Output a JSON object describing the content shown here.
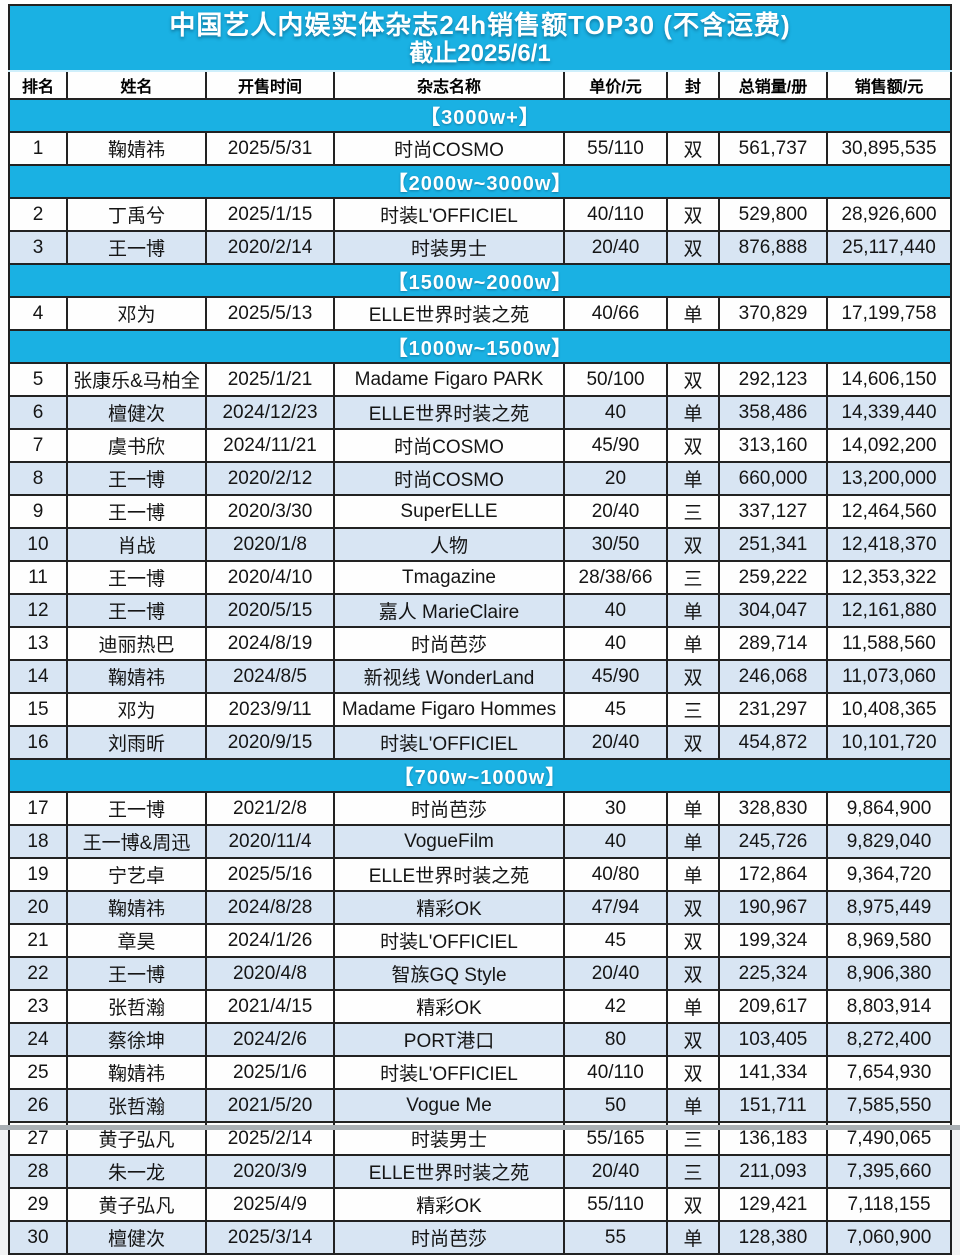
{
  "title": "中国艺人内娱实体杂志24h销售额TOP30 (不含运费)",
  "subtitle": "截止2025/6/1",
  "columns": [
    "排名",
    "姓名",
    "开售时间",
    "杂志名称",
    "单价/元",
    "封",
    "总销量/册",
    "销售额/元"
  ],
  "colors": {
    "accent": "#1ab1e3",
    "alt_row": "#d8e5f3",
    "border": "#222222"
  },
  "sections": [
    {
      "label": "【3000w+】",
      "rows": [
        {
          "rank": "1",
          "name": "鞠婧祎",
          "date": "2025/5/31",
          "magazine": "时尚COSMO",
          "price": "55/110",
          "cover": "双",
          "copies": "561,737",
          "revenue": "30,895,535"
        }
      ]
    },
    {
      "label": "【2000w~3000w】",
      "rows": [
        {
          "rank": "2",
          "name": "丁禹兮",
          "date": "2025/1/15",
          "magazine": "时装L'OFFICIEL",
          "price": "40/110",
          "cover": "双",
          "copies": "529,800",
          "revenue": "28,926,600"
        },
        {
          "rank": "3",
          "name": "王一博",
          "date": "2020/2/14",
          "magazine": "时装男士",
          "price": "20/40",
          "cover": "双",
          "copies": "876,888",
          "revenue": "25,117,440"
        }
      ]
    },
    {
      "label": "【1500w~2000w】",
      "rows": [
        {
          "rank": "4",
          "name": "邓为",
          "date": "2025/5/13",
          "magazine": "ELLE世界时装之苑",
          "price": "40/66",
          "cover": "单",
          "copies": "370,829",
          "revenue": "17,199,758"
        }
      ]
    },
    {
      "label": "【1000w~1500w】",
      "rows": [
        {
          "rank": "5",
          "name": "张康乐&马柏全",
          "date": "2025/1/21",
          "magazine": "Madame Figaro PARK",
          "price": "50/100",
          "cover": "双",
          "copies": "292,123",
          "revenue": "14,606,150"
        },
        {
          "rank": "6",
          "name": "檀健次",
          "date": "2024/12/23",
          "magazine": "ELLE世界时装之苑",
          "price": "40",
          "cover": "单",
          "copies": "358,486",
          "revenue": "14,339,440"
        },
        {
          "rank": "7",
          "name": "虞书欣",
          "date": "2024/11/21",
          "magazine": "时尚COSMO",
          "price": "45/90",
          "cover": "双",
          "copies": "313,160",
          "revenue": "14,092,200"
        },
        {
          "rank": "8",
          "name": "王一博",
          "date": "2020/2/12",
          "magazine": "时尚COSMO",
          "price": "20",
          "cover": "单",
          "copies": "660,000",
          "revenue": "13,200,000"
        },
        {
          "rank": "9",
          "name": "王一博",
          "date": "2020/3/30",
          "magazine": "SuperELLE",
          "price": "20/40",
          "cover": "三",
          "copies": "337,127",
          "revenue": "12,464,560"
        },
        {
          "rank": "10",
          "name": "肖战",
          "date": "2020/1/8",
          "magazine": "人物",
          "price": "30/50",
          "cover": "双",
          "copies": "251,341",
          "revenue": "12,418,370"
        },
        {
          "rank": "11",
          "name": "王一博",
          "date": "2020/4/10",
          "magazine": "Tmagazine",
          "price": "28/38/66",
          "cover": "三",
          "copies": "259,222",
          "revenue": "12,353,322"
        },
        {
          "rank": "12",
          "name": "王一博",
          "date": "2020/5/15",
          "magazine": "嘉人 MarieClaire",
          "price": "40",
          "cover": "单",
          "copies": "304,047",
          "revenue": "12,161,880"
        },
        {
          "rank": "13",
          "name": "迪丽热巴",
          "date": "2024/8/19",
          "magazine": "时尚芭莎",
          "price": "40",
          "cover": "单",
          "copies": "289,714",
          "revenue": "11,588,560"
        },
        {
          "rank": "14",
          "name": "鞠婧祎",
          "date": "2024/8/5",
          "magazine": "新视线 WonderLand",
          "price": "45/90",
          "cover": "双",
          "copies": "246,068",
          "revenue": "11,073,060"
        },
        {
          "rank": "15",
          "name": "邓为",
          "date": "2023/9/11",
          "magazine": "Madame Figaro Hommes",
          "price": "45",
          "cover": "三",
          "copies": "231,297",
          "revenue": "10,408,365"
        },
        {
          "rank": "16",
          "name": "刘雨昕",
          "date": "2020/9/15",
          "magazine": "时装L'OFFICIEL",
          "price": "20/40",
          "cover": "双",
          "copies": "454,872",
          "revenue": "10,101,720"
        }
      ]
    },
    {
      "label": "【700w~1000w】",
      "rows": [
        {
          "rank": "17",
          "name": "王一博",
          "date": "2021/2/8",
          "magazine": "时尚芭莎",
          "price": "30",
          "cover": "单",
          "copies": "328,830",
          "revenue": "9,864,900"
        },
        {
          "rank": "18",
          "name": "王一博&周迅",
          "date": "2020/11/4",
          "magazine": "VogueFilm",
          "price": "40",
          "cover": "单",
          "copies": "245,726",
          "revenue": "9,829,040"
        },
        {
          "rank": "19",
          "name": "宁艺卓",
          "date": "2025/5/16",
          "magazine": "ELLE世界时装之苑",
          "price": "40/80",
          "cover": "单",
          "copies": "172,864",
          "revenue": "9,364,720"
        },
        {
          "rank": "20",
          "name": "鞠婧祎",
          "date": "2024/8/28",
          "magazine": "精彩OK",
          "price": "47/94",
          "cover": "双",
          "copies": "190,967",
          "revenue": "8,975,449"
        },
        {
          "rank": "21",
          "name": "章昊",
          "date": "2024/1/26",
          "magazine": "时装L'OFFICIEL",
          "price": "45",
          "cover": "双",
          "copies": "199,324",
          "revenue": "8,969,580"
        },
        {
          "rank": "22",
          "name": "王一博",
          "date": "2020/4/8",
          "magazine": "智族GQ Style",
          "price": "20/40",
          "cover": "双",
          "copies": "225,324",
          "revenue": "8,906,380"
        },
        {
          "rank": "23",
          "name": "张哲瀚",
          "date": "2021/4/15",
          "magazine": "精彩OK",
          "price": "42",
          "cover": "单",
          "copies": "209,617",
          "revenue": "8,803,914"
        },
        {
          "rank": "24",
          "name": "蔡徐坤",
          "date": "2024/2/6",
          "magazine": "PORT港口",
          "price": "80",
          "cover": "双",
          "copies": "103,405",
          "revenue": "8,272,400"
        },
        {
          "rank": "25",
          "name": "鞠婧祎",
          "date": "2025/1/6",
          "magazine": "时装L'OFFICIEL",
          "price": "40/110",
          "cover": "双",
          "copies": "141,334",
          "revenue": "7,654,930"
        },
        {
          "rank": "26",
          "name": "张哲瀚",
          "date": "2021/5/20",
          "magazine": "Vogue Me",
          "price": "50",
          "cover": "单",
          "copies": "151,711",
          "revenue": "7,585,550"
        },
        {
          "rank": "27",
          "name": "黄子弘凡",
          "date": "2025/2/14",
          "magazine": "时装男士",
          "price": "55/165",
          "cover": "三",
          "copies": "136,183",
          "revenue": "7,490,065"
        },
        {
          "rank": "28",
          "name": "朱一龙",
          "date": "2020/3/9",
          "magazine": "ELLE世界时装之苑",
          "price": "20/40",
          "cover": "三",
          "copies": "211,093",
          "revenue": "7,395,660"
        },
        {
          "rank": "29",
          "name": "黄子弘凡",
          "date": "2025/4/9",
          "magazine": "精彩OK",
          "price": "55/110",
          "cover": "双",
          "copies": "129,421",
          "revenue": "7,118,155"
        },
        {
          "rank": "30",
          "name": "檀健次",
          "date": "2025/3/14",
          "magazine": "时尚芭莎",
          "price": "55",
          "cover": "单",
          "copies": "128,380",
          "revenue": "7,060,900"
        }
      ]
    }
  ]
}
